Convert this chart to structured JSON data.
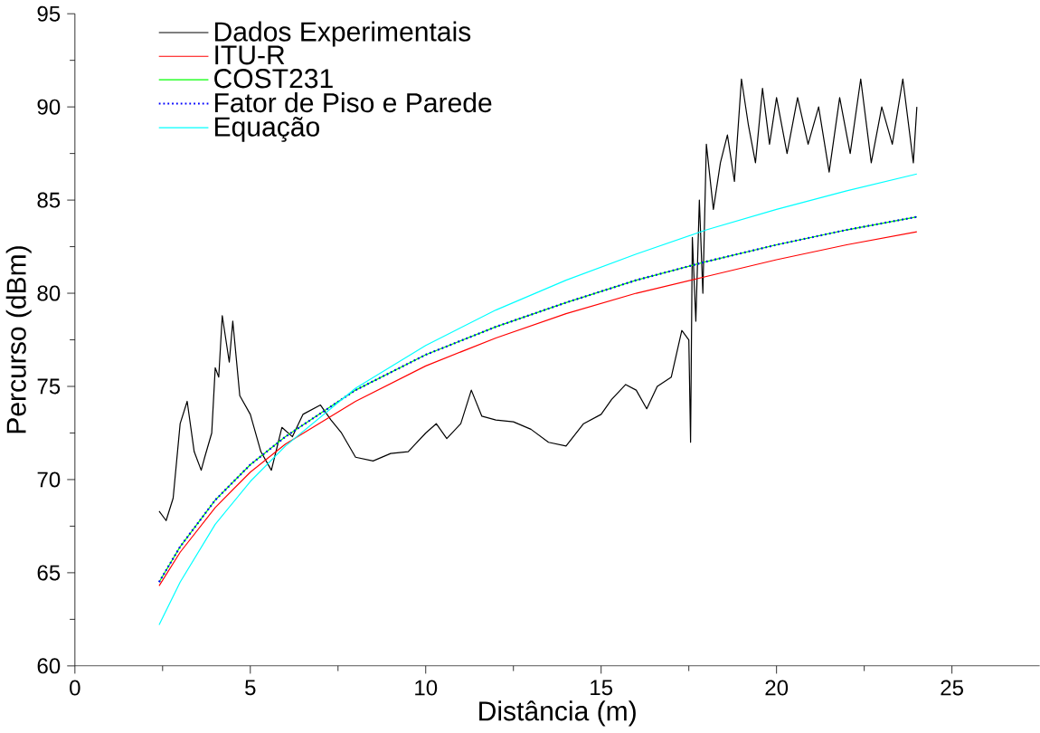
{
  "chart_data": {
    "type": "line",
    "xlabel": "Distância (m)",
    "ylabel": "Percurso (dBm)",
    "xlim": [
      0,
      27.5
    ],
    "ylim": [
      60,
      95
    ],
    "xticks": [
      0,
      5,
      10,
      15,
      20,
      25
    ],
    "yticks": [
      60,
      65,
      70,
      75,
      80,
      85,
      90,
      95
    ],
    "legend": "top left",
    "grid": false,
    "series": [
      {
        "name": "Dados Experimentais",
        "color": "#000000",
        "line_style": "solid",
        "x": [
          2.4,
          2.6,
          2.8,
          3.0,
          3.2,
          3.4,
          3.6,
          3.7,
          3.9,
          4.0,
          4.1,
          4.2,
          4.4,
          4.5,
          4.7,
          5.0,
          5.3,
          5.6,
          5.9,
          6.2,
          6.5,
          7.0,
          7.3,
          7.6,
          8.0,
          8.5,
          9.0,
          9.5,
          10.0,
          10.3,
          10.6,
          11.0,
          11.3,
          11.6,
          12.0,
          12.5,
          13.0,
          13.5,
          14.0,
          14.5,
          15.0,
          15.3,
          15.7,
          16.0,
          16.3,
          16.6,
          17.0,
          17.3,
          17.5,
          17.55,
          17.6,
          17.7,
          17.8,
          17.9,
          18.0,
          18.2,
          18.4,
          18.6,
          18.8,
          19.0,
          19.2,
          19.4,
          19.6,
          19.8,
          20.0,
          20.3,
          20.6,
          20.9,
          21.2,
          21.5,
          21.8,
          22.1,
          22.4,
          22.7,
          23.0,
          23.3,
          23.6,
          23.9,
          24.0
        ],
        "values": [
          68.3,
          67.8,
          69,
          73,
          74.2,
          71.5,
          70.5,
          71.2,
          72.5,
          76,
          75.5,
          78.8,
          76.3,
          78.5,
          74.5,
          73.5,
          71.5,
          70.5,
          72.8,
          72.3,
          73.5,
          74.0,
          73.2,
          72.5,
          71.2,
          71.0,
          71.4,
          71.5,
          72.5,
          73.0,
          72.2,
          73.0,
          74.8,
          73.4,
          73.2,
          73.1,
          72.7,
          72.0,
          71.8,
          73.0,
          73.5,
          74.3,
          75.1,
          74.8,
          73.8,
          75.0,
          75.5,
          78.0,
          77.5,
          72.0,
          83,
          78.5,
          85,
          80,
          88,
          84.5,
          87,
          88.5,
          86,
          91.5,
          89,
          87,
          91,
          88,
          90.5,
          87.5,
          90.5,
          88,
          90,
          86.5,
          90.5,
          87.5,
          91.5,
          87,
          90,
          88,
          91.5,
          87,
          90
        ]
      },
      {
        "name": "ITU-R",
        "color": "#ff0000",
        "line_style": "solid",
        "x": [
          2.4,
          3,
          4,
          5,
          6,
          8,
          10,
          12,
          14,
          16,
          18,
          20,
          22,
          24
        ],
        "values": [
          64.3,
          66.1,
          68.5,
          70.4,
          71.9,
          74.2,
          76.1,
          77.6,
          78.9,
          80.0,
          80.9,
          81.8,
          82.6,
          83.3
        ]
      },
      {
        "name": "COST231",
        "color": "#00ff00",
        "line_style": "solid",
        "x": [
          2.4,
          3,
          4,
          5,
          6,
          8,
          10,
          12,
          14,
          16,
          18,
          20,
          22,
          24
        ],
        "values": [
          64.5,
          66.4,
          68.9,
          70.8,
          72.3,
          74.8,
          76.7,
          78.2,
          79.5,
          80.7,
          81.7,
          82.6,
          83.4,
          84.1
        ]
      },
      {
        "name": "Fator de Piso e Parede",
        "color": "#0000ff",
        "line_style": "dotted",
        "x": [
          2.4,
          3,
          4,
          5,
          6,
          8,
          10,
          12,
          14,
          16,
          18,
          20,
          22,
          24
        ],
        "values": [
          64.5,
          66.4,
          68.9,
          70.8,
          72.3,
          74.8,
          76.7,
          78.2,
          79.5,
          80.7,
          81.7,
          82.6,
          83.4,
          84.1
        ]
      },
      {
        "name": "Equação",
        "color": "#00ffff",
        "line_style": "solid",
        "x": [
          2.4,
          3,
          4,
          5,
          6,
          8,
          10,
          12,
          14,
          16,
          18,
          20,
          22,
          24
        ],
        "values": [
          62.2,
          64.5,
          67.6,
          69.9,
          71.8,
          74.9,
          77.2,
          79.1,
          80.7,
          82.1,
          83.4,
          84.5,
          85.5,
          86.4
        ]
      }
    ]
  }
}
